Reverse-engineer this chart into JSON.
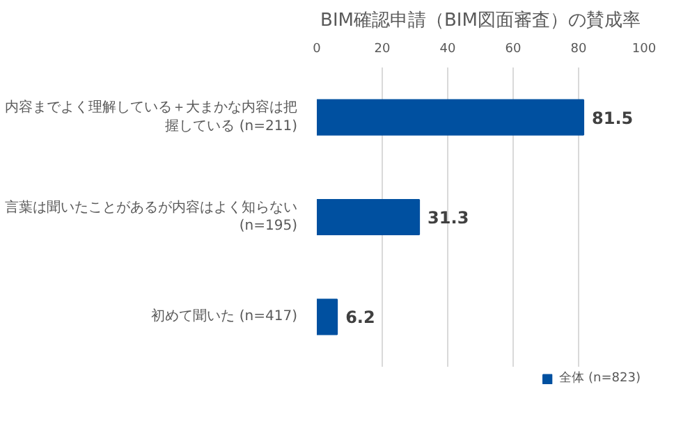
{
  "chart_data": {
    "type": "bar",
    "orientation": "horizontal",
    "title": "BIM確認申請（BIM図面審査）の賛成率",
    "categories": [
      "内容までよく理解している＋大まかな内容は把握している (n=211)",
      "言葉は聞いたことがあるが内容はよく知らない (n=195)",
      "初めて聞いた (n=417)"
    ],
    "series": [
      {
        "name": "全体 (n=823)",
        "color": "#0050a0",
        "values": [
          81.5,
          31.3,
          6.2
        ]
      }
    ],
    "xlim": [
      0,
      100
    ],
    "xticks": [
      0,
      20,
      40,
      60,
      80,
      100
    ],
    "grid": "x",
    "legend": "bottom",
    "data_labels": true
  }
}
